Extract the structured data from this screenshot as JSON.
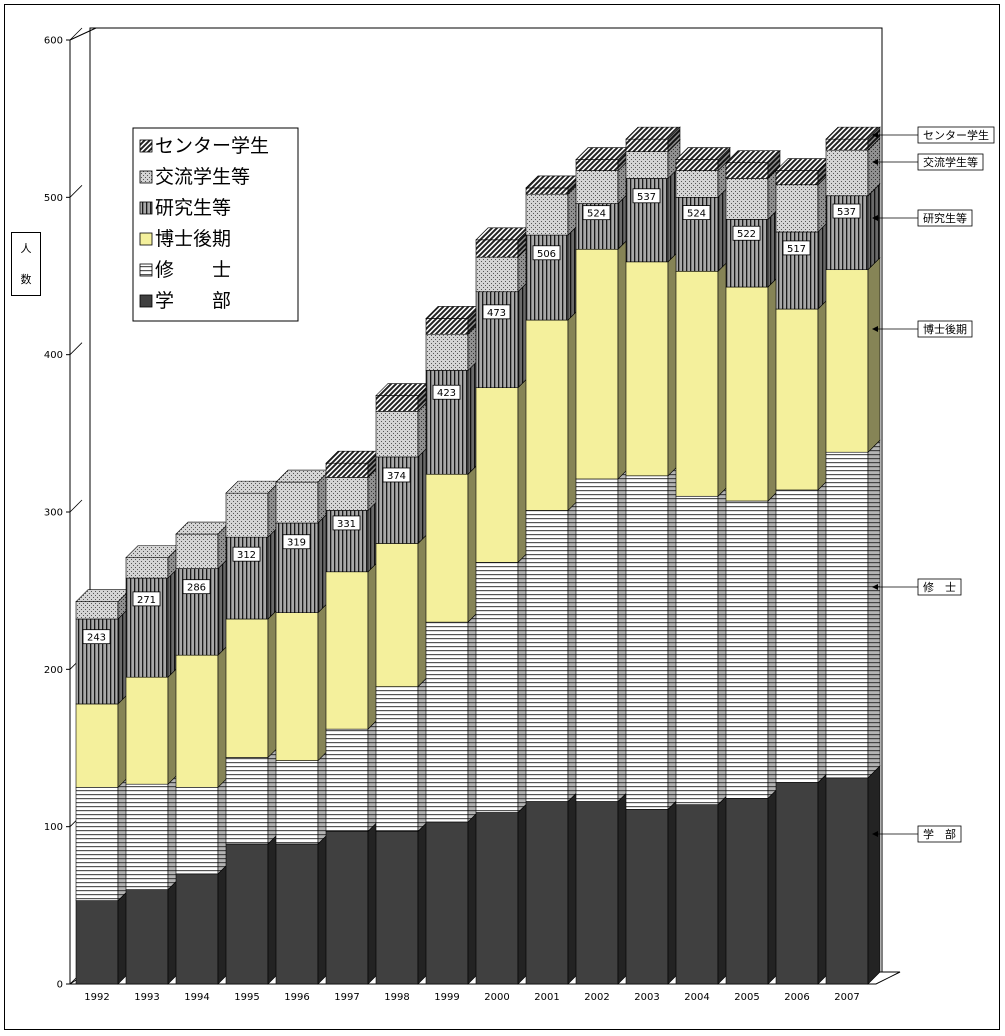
{
  "chart_data": {
    "type": "bar",
    "stacked": true,
    "three_d": true,
    "ylabel": "人数",
    "ylabel_chars": [
      "人",
      "数"
    ],
    "ylim": [
      0,
      600
    ],
    "yticks": [
      "0",
      "100",
      "200",
      "300",
      "400",
      "500",
      "600"
    ],
    "categories": [
      "1992",
      "1993",
      "1994",
      "1995",
      "1996",
      "1997",
      "1998",
      "1999",
      "2000",
      "2001",
      "2002",
      "2003",
      "2004",
      "2005",
      "2006",
      "2007"
    ],
    "totals": [
      "243",
      "271",
      "286",
      "312",
      "319",
      "331",
      "374",
      "423",
      "473",
      "506",
      "524",
      "537",
      "524",
      "522",
      "517",
      "537"
    ],
    "series": [
      {
        "name": "学 部",
        "legend_label": "学　　部",
        "side_label": "学　部",
        "color": "#404040",
        "pattern": "solid",
        "values": [
          53,
          60,
          70,
          89,
          89,
          97,
          97,
          103,
          109,
          116,
          116,
          111,
          114,
          118,
          128,
          131
        ]
      },
      {
        "name": "修 士",
        "legend_label": "修　　士",
        "side_label": "修　士",
        "color": "#ffffff",
        "pattern": "hstripe",
        "values": [
          72,
          67,
          55,
          55,
          53,
          65,
          92,
          127,
          159,
          185,
          205,
          212,
          196,
          189,
          186,
          207
        ]
      },
      {
        "name": "博士後期",
        "legend_label": "博士後期",
        "side_label": "博士後期",
        "color": "#f4f09c",
        "pattern": "solid",
        "values": [
          53,
          68,
          84,
          88,
          94,
          100,
          91,
          94,
          111,
          121,
          146,
          136,
          143,
          136,
          115,
          116
        ]
      },
      {
        "name": "研究生等",
        "legend_label": "研究生等",
        "side_label": "研究生等",
        "color": "#8a8a8a",
        "pattern": "vstripe",
        "values": [
          54,
          63,
          55,
          52,
          57,
          39,
          55,
          66,
          61,
          54,
          29,
          53,
          47,
          43,
          49,
          47
        ]
      },
      {
        "name": "交流学生等",
        "legend_label": "交流学生等",
        "side_label": "交流学生等",
        "color": "#c4c4c4",
        "pattern": "dots",
        "values": [
          11,
          13,
          22,
          28,
          26,
          21,
          29,
          23,
          22,
          26,
          21,
          17,
          17,
          26,
          30,
          29
        ]
      },
      {
        "name": "センター学生",
        "legend_label": "センター学生",
        "side_label": "センター学生",
        "color": "#303030",
        "pattern": "diag",
        "values": [
          0,
          0,
          0,
          0,
          0,
          9,
          10,
          10,
          11,
          4,
          7,
          8,
          7,
          10,
          9,
          7
        ]
      }
    ],
    "legend_position": "top-left",
    "grid": false
  }
}
